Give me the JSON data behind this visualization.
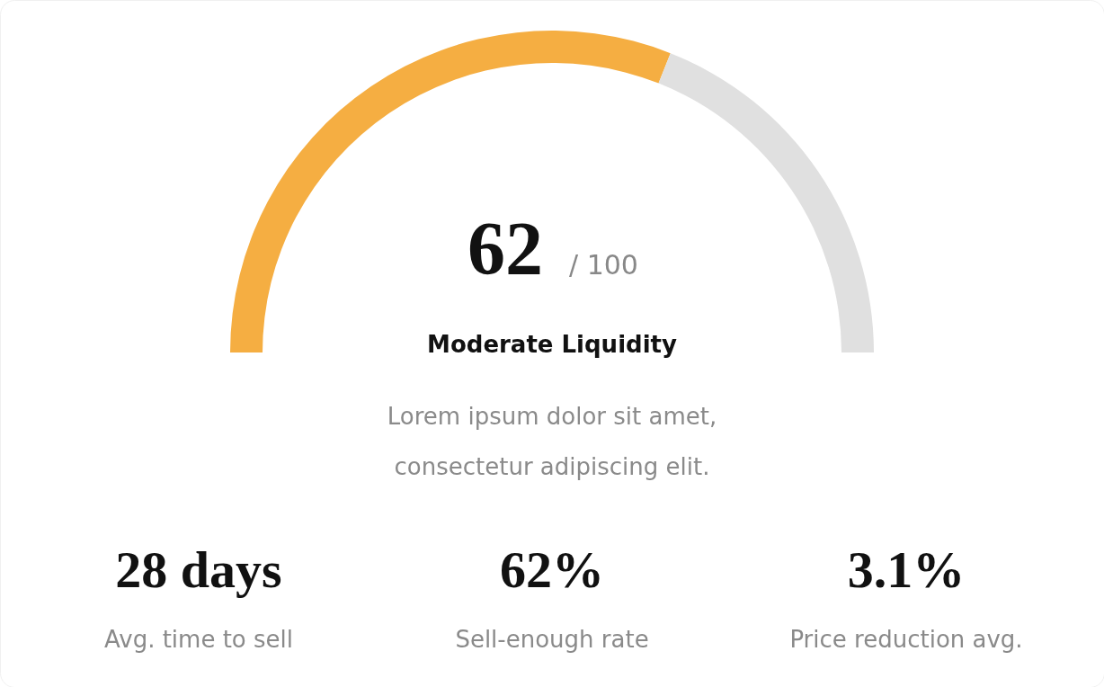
{
  "chart_data": {
    "type": "donut",
    "categories": [
      null,
      null
    ],
    "values": [
      62,
      38
    ],
    "colors": [
      "#f5ae42",
      "#e0e0e0"
    ],
    "annotations": [
      "62",
      "/ 100",
      "Moderate Liquidity",
      "Lorem ipsum dolor sit amet,",
      "consectetur adipiscing elit.",
      "28 days",
      "Avg. time to sell",
      "62%",
      "Sell-enough rate",
      "3.1%",
      "Price reduction avg."
    ]
  }
}
